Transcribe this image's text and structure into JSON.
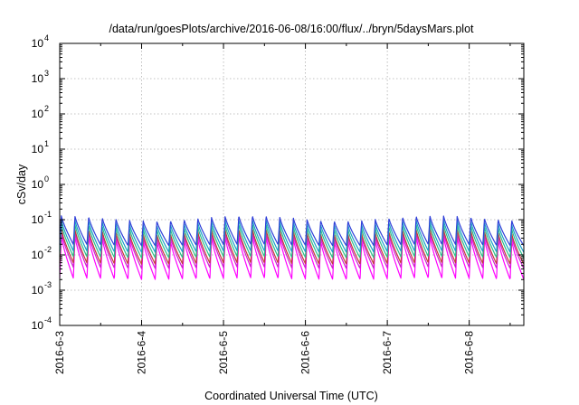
{
  "chart_data": {
    "type": "line",
    "title": "/data/run/goesPlots/archive/2016-06-08/16:00/flux/../bryn/5daysMars.plot",
    "xlabel": "Coordinated Universal Time (UTC)",
    "ylabel": "cSv/day",
    "y_scale": "log",
    "ylim": [
      0.0001,
      10000
    ],
    "y_ticks": [
      {
        "value": 0.0001,
        "base": "10",
        "exp": "-4"
      },
      {
        "value": 0.001,
        "base": "10",
        "exp": "-3"
      },
      {
        "value": 0.01,
        "base": "10",
        "exp": "-2"
      },
      {
        "value": 0.1,
        "base": "10",
        "exp": "-1"
      },
      {
        "value": 1,
        "base": "10",
        "exp": "0"
      },
      {
        "value": 10,
        "base": "10",
        "exp": "1"
      },
      {
        "value": 100,
        "base": "10",
        "exp": "2"
      },
      {
        "value": 1000,
        "base": "10",
        "exp": "3"
      },
      {
        "value": 10000,
        "base": "10",
        "exp": "4"
      }
    ],
    "x_range_days": [
      "2016-06-03",
      "2016-06-08T16:00"
    ],
    "x_ticks": [
      "2016-6-3",
      "2016-6-4",
      "2016-6-5",
      "2016-6-6",
      "2016-6-7",
      "2016-6-8"
    ],
    "grid": true,
    "legend": "none",
    "oscillation_period_hours": 4,
    "series": [
      {
        "color": "#2f3fd8",
        "peak": 0.13,
        "trough": 0.02
      },
      {
        "color": "#1aa0c8",
        "peak": 0.1,
        "trough": 0.013
      },
      {
        "color": "#2bbf8a",
        "peak": 0.075,
        "trough": 0.009
      },
      {
        "color": "#c23a3a",
        "peak": 0.055,
        "trough": 0.006
      },
      {
        "color": "#d020d0",
        "peak": 0.045,
        "trough": 0.0045
      },
      {
        "color": "#ff00ff",
        "peak": 0.035,
        "trough": 0.0022
      }
    ]
  }
}
